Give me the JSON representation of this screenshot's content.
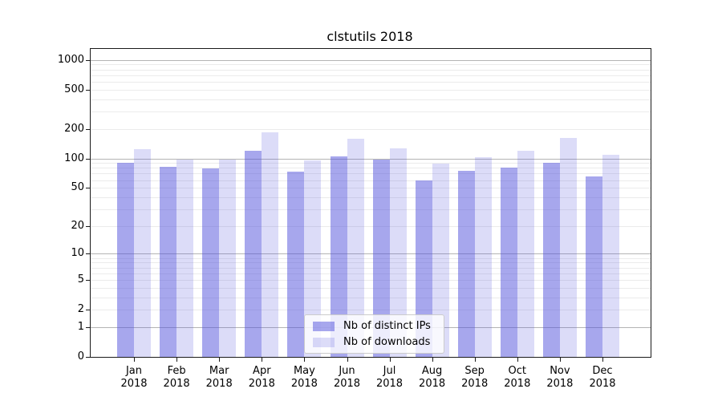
{
  "page": {
    "background": "#ffffff"
  },
  "chart_data": {
    "type": "bar",
    "title": "clstutils 2018",
    "yscale": "log1p",
    "xlabel": "",
    "ylabel": "",
    "categories": [
      "Jan 2018",
      "Feb 2018",
      "Mar 2018",
      "Apr 2018",
      "May 2018",
      "Jun 2018",
      "Jul 2018",
      "Aug 2018",
      "Sep 2018",
      "Oct 2018",
      "Nov 2018",
      "Dec 2018"
    ],
    "series": [
      {
        "name": "Nb of distinct IPs",
        "color": "rgba(80,80,220,0.50)",
        "values": [
          90,
          82,
          79,
          120,
          74,
          105,
          97,
          60,
          75,
          80,
          91,
          66
        ]
      },
      {
        "name": "Nb of downloads",
        "color": "rgba(80,80,220,0.20)",
        "values": [
          125,
          97,
          97,
          185,
          96,
          160,
          127,
          88,
          103,
          120,
          163,
          110
        ]
      }
    ],
    "yticks": [
      0,
      1,
      2,
      5,
      10,
      20,
      50,
      100,
      200,
      500,
      1000
    ],
    "major_grid_values": [
      1,
      10,
      100,
      1000
    ],
    "ylim": [
      0,
      1288
    ],
    "grid": true,
    "legend_position": "lower center inside"
  },
  "colors": {
    "major_grid": "#b4b4b4",
    "minor_grid": "#ebebeb",
    "axis": "#1a1a1a",
    "bar_ips": "rgba(80,80,220,0.50)",
    "bar_downloads": "rgba(80,80,220,0.20)"
  }
}
